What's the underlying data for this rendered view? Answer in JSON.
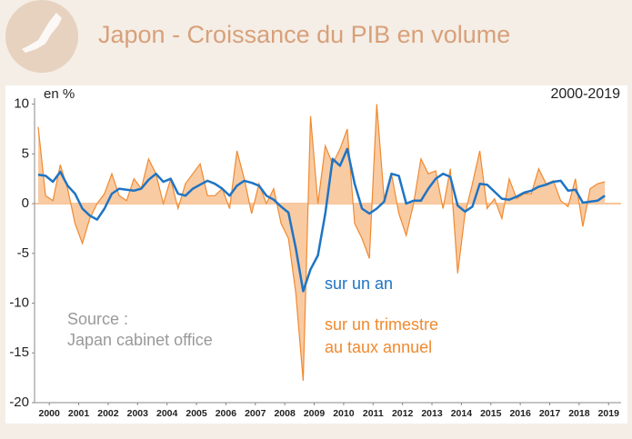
{
  "chart_data": {
    "type": "line",
    "title": "Japon - Croissance du PIB en volume",
    "y_label": "en %",
    "period": "2000-2019",
    "source": [
      "Source :",
      "Japan cabinet office"
    ],
    "x": [
      2000,
      2000.25,
      2000.5,
      2000.75,
      2001,
      2001.25,
      2001.5,
      2001.75,
      2002,
      2002.25,
      2002.5,
      2002.75,
      2003,
      2003.25,
      2003.5,
      2003.75,
      2004,
      2004.25,
      2004.5,
      2004.75,
      2005,
      2005.25,
      2005.5,
      2005.75,
      2006,
      2006.25,
      2006.5,
      2006.75,
      2007,
      2007.25,
      2007.5,
      2007.75,
      2008,
      2008.25,
      2008.5,
      2008.75,
      2009,
      2009.25,
      2009.5,
      2009.75,
      2010,
      2010.25,
      2010.5,
      2010.75,
      2011,
      2011.25,
      2011.5,
      2011.75,
      2012,
      2012.25,
      2012.5,
      2012.75,
      2013,
      2013.25,
      2013.5,
      2013.75,
      2014,
      2014.25,
      2014.5,
      2014.75,
      2015,
      2015.25,
      2015.5,
      2015.75,
      2016,
      2016.25,
      2016.5,
      2016.75,
      2017,
      2017.25,
      2017.5,
      2017.75,
      2018,
      2018.25,
      2018.5,
      2018.75,
      2019,
      2019.25
    ],
    "series": [
      {
        "name": [
          "sur un trimestre",
          "au taux annuel"
        ],
        "color": "#f08a30",
        "fill": "#f9cba3",
        "style": "area",
        "values": [
          7.7,
          0.8,
          0.3,
          3.9,
          1.5,
          -2,
          -4,
          -1.5,
          0,
          1,
          3,
          0.8,
          0.3,
          2.5,
          1.5,
          4.5,
          3,
          0,
          2.5,
          -0.5,
          2,
          3,
          4,
          0.8,
          0.8,
          1.5,
          -0.5,
          5.3,
          2.5,
          -1,
          2,
          0,
          1.5,
          -2,
          -3.5,
          -9,
          -17.8,
          8.8,
          0,
          5.8,
          4,
          5.5,
          7.5,
          -2,
          -3.5,
          -5.5,
          10,
          0.5,
          3,
          -1,
          -3.2,
          0,
          4.5,
          3,
          3.3,
          -0.5,
          3.5,
          -7,
          -1,
          2,
          5.3,
          -0.5,
          0.5,
          -1.5,
          2.5,
          0.5,
          1,
          1,
          3.5,
          2,
          2.3,
          0.3,
          -0.3,
          2.5,
          -2.3,
          1.5,
          2,
          2.2
        ]
      },
      {
        "name": "sur un an",
        "color": "#1f74c4",
        "style": "line",
        "values": [
          2.9,
          2.8,
          2.2,
          3.2,
          1.8,
          1,
          -0.5,
          -1.2,
          -1.6,
          -0.5,
          1,
          1.5,
          1.4,
          1.3,
          1.5,
          2.4,
          3,
          2.2,
          2.5,
          1,
          0.8,
          1.5,
          1.9,
          2.3,
          2,
          1.5,
          0.8,
          1.8,
          2.3,
          2.1,
          1.8,
          0.8,
          0.4,
          -0.3,
          -0.9,
          -4.5,
          -8.8,
          -6.6,
          -5.2,
          -1,
          4.5,
          3.8,
          5.5,
          2,
          -0.5,
          -1,
          -0.5,
          0.2,
          3,
          2.8,
          0,
          0.3,
          0.3,
          1.5,
          2.5,
          3,
          2.7,
          -0.2,
          -0.8,
          -0.3,
          2,
          1.9,
          1.2,
          0.5,
          0.4,
          0.7,
          1.1,
          1.3,
          1.7,
          1.9,
          2.2,
          2.3,
          1.3,
          1.4,
          0.1,
          0.2,
          0.3,
          0.8
        ]
      }
    ],
    "xlim": [
      1999.875,
      2019.8
    ],
    "ylim": [
      -20,
      10.6
    ],
    "yticks": [
      10,
      5,
      0,
      -5,
      -10,
      -15,
      -20
    ],
    "xticks": [
      {
        "value": 2000.375,
        "label": "2000"
      },
      {
        "value": 2001.375,
        "label": "2001"
      },
      {
        "value": 2002.375,
        "label": "2002"
      },
      {
        "value": 2003.375,
        "label": "2003"
      },
      {
        "value": 2004.375,
        "label": "2004"
      },
      {
        "value": 2005.375,
        "label": "2005"
      },
      {
        "value": 2006.375,
        "label": "2006"
      },
      {
        "value": 2007.375,
        "label": "2007"
      },
      {
        "value": 2008.375,
        "label": "2008"
      },
      {
        "value": 2009.375,
        "label": "2009"
      },
      {
        "value": 2010.375,
        "label": "2010"
      },
      {
        "value": 2011.375,
        "label": "2011"
      },
      {
        "value": 2012.375,
        "label": "2012"
      },
      {
        "value": 2013.375,
        "label": "2013"
      },
      {
        "value": 2014.375,
        "label": "2014"
      },
      {
        "value": 2015.375,
        "label": "2015"
      },
      {
        "value": 2016.375,
        "label": "2016"
      },
      {
        "value": 2017.375,
        "label": "2017"
      },
      {
        "value": 2018.375,
        "label": "2018"
      },
      {
        "value": 2019.375,
        "label": "2019"
      }
    ],
    "grid": false
  }
}
